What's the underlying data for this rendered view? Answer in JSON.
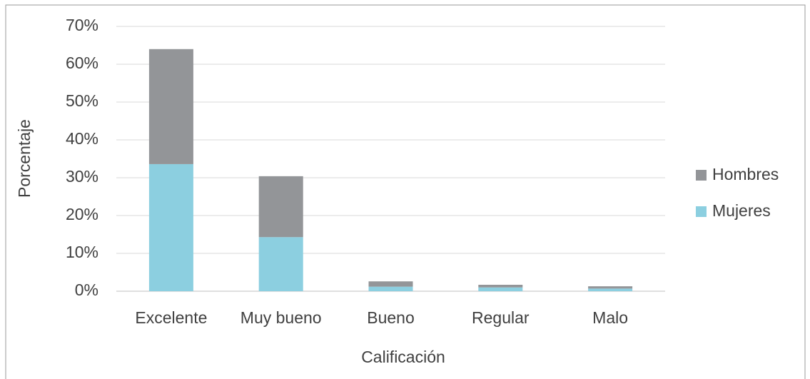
{
  "chart_data": {
    "type": "stacked_bar",
    "x_label": "Calificación",
    "y_label": "Porcentaje",
    "categories": [
      "Excelente",
      "Muy bueno",
      "Bueno",
      "Regular",
      "Malo"
    ],
    "series": [
      {
        "name": "Mujeres",
        "color": "#8ccfe0",
        "values": [
          33.6,
          14.3,
          1.2,
          1.0,
          0.7
        ]
      },
      {
        "name": "Hombres",
        "color": "#939598",
        "values": [
          30.4,
          16.1,
          1.4,
          0.7,
          0.6
        ]
      }
    ],
    "ylim": [
      0,
      70
    ],
    "yticks": [
      {
        "value": 0,
        "label": "0%"
      },
      {
        "value": 10,
        "label": "10%"
      },
      {
        "value": 20,
        "label": "20%"
      },
      {
        "value": 30,
        "label": "30%"
      },
      {
        "value": 40,
        "label": "40%"
      },
      {
        "value": 50,
        "label": "50%"
      },
      {
        "value": 60,
        "label": "60%"
      },
      {
        "value": 70,
        "label": "70%"
      }
    ],
    "grid": true,
    "legend": "right"
  }
}
